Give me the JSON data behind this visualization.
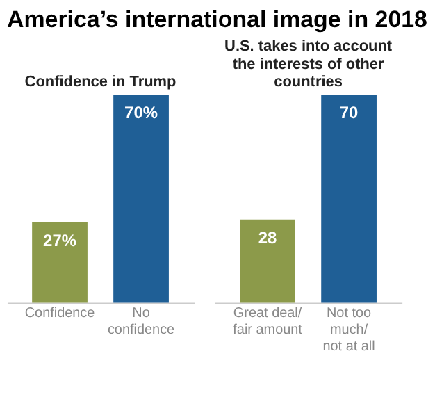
{
  "chart_data": [
    {
      "type": "bar",
      "title": "America’s international image in 2018",
      "subtitle": "Confidence in Trump",
      "categories": [
        "Confidence",
        "No confidence"
      ],
      "values": [
        27,
        70
      ],
      "colors": [
        "#8c9a4a",
        "#1f5f96"
      ],
      "value_labels": [
        "27%",
        "70%"
      ]
    },
    {
      "type": "bar",
      "subtitle": "U.S. takes into account the interests of other countries",
      "categories": [
        "Great deal/ fair amount",
        "Not too much/ not at all"
      ],
      "values": [
        28,
        70
      ],
      "colors": [
        "#8c9a4a",
        "#1f5f96"
      ],
      "data_labels": true
    }
  ]
}
